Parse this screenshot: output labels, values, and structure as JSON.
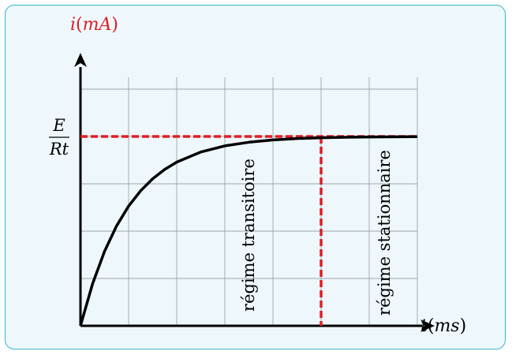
{
  "chart_data": {
    "type": "line",
    "xlabel": {
      "var": "t",
      "unit": "ms"
    },
    "ylabel": {
      "var": "i",
      "unit": "mA"
    },
    "asymptote_label": {
      "numerator": "E",
      "denominator": "Rt"
    },
    "region_labels": [
      "régime transitoire",
      "régime stationnaire"
    ],
    "grid": true,
    "x_range": [
      0,
      7
    ],
    "y_range": [
      0,
      5
    ],
    "steady_value": 4,
    "time_constant": 1,
    "regime_boundary_x": 5,
    "series": [
      {
        "x": [
          0,
          0.25,
          0.5,
          0.75,
          1,
          1.25,
          1.5,
          1.75,
          2,
          2.5,
          3,
          3.5,
          4,
          4.5,
          5,
          5.5,
          6,
          7
        ],
        "values": [
          0,
          0.885,
          1.574,
          2.111,
          2.528,
          2.854,
          3.107,
          3.305,
          3.459,
          3.672,
          3.801,
          3.879,
          3.927,
          3.956,
          3.973,
          3.984,
          3.99,
          3.996
        ]
      }
    ],
    "colors": {
      "curve": "#000000",
      "dashed": "#e11d24",
      "label": "#e11d24",
      "grid": "#9aa3aa",
      "axis": "#000000"
    }
  }
}
